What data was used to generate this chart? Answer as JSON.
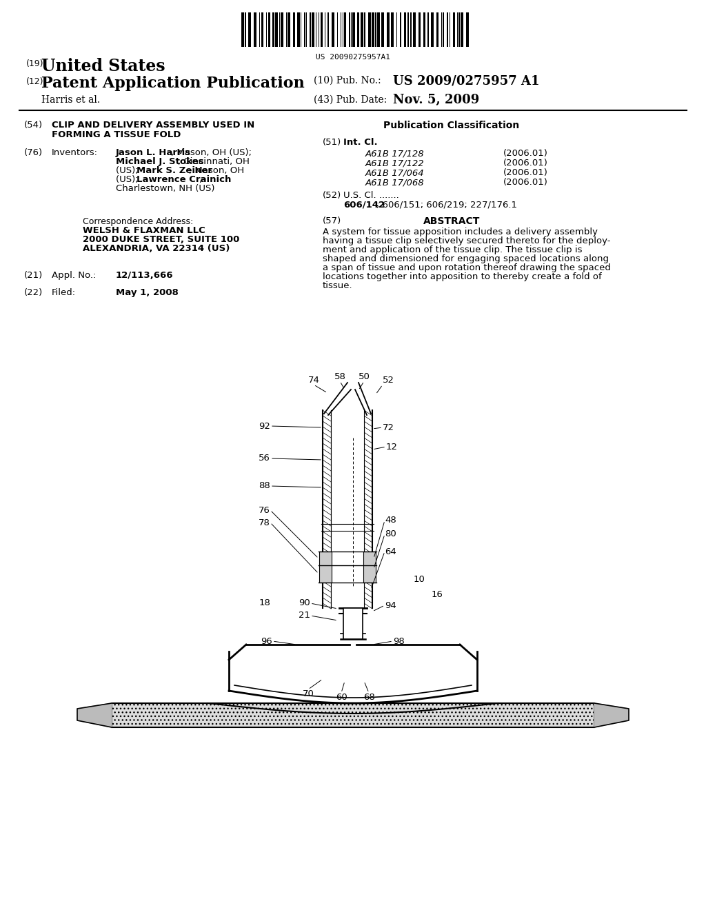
{
  "background_color": "#ffffff",
  "barcode_text": "US 20090275957A1",
  "patent_number_label": "(19)",
  "patent_number_title": "United States",
  "pub_type_label": "(12)",
  "pub_type_title": "Patent Application Publication",
  "pub_no_label": "(10) Pub. No.:",
  "pub_no_value": "US 2009/0275957 A1",
  "pub_date_label": "(43) Pub. Date:",
  "pub_date_value": "Nov. 5, 2009",
  "inventors_label": "Harris et al.",
  "title_label": "(54)",
  "title_text": "CLIP AND DELIVERY ASSEMBLY USED IN\nFORMING A TISSUE FOLD",
  "inventors_section_label": "(76)",
  "inventors_section_title": "Inventors:",
  "inventors_text": "Jason L. Harris, Mason, OH (US);\nMichael J. Stokes, Cincinnati, OH\n(US); Mark S. Zeiner, Mason, OH\n(US); Lawrence Crainich,\nCharlestown, NH (US)",
  "correspondence_header": "Correspondence Address:",
  "correspondence_name": "WELSH & FLAXMAN LLC",
  "correspondence_addr1": "2000 DUKE STREET, SUITE 100",
  "correspondence_addr2": "ALEXANDRIA, VA 22314 (US)",
  "appl_no_label": "(21)",
  "appl_no_title": "Appl. No.:",
  "appl_no_value": "12/113,666",
  "filed_label": "(22)",
  "filed_title": "Filed:",
  "filed_value": "May 1, 2008",
  "pub_class_title": "Publication Classification",
  "int_cl_label": "(51)",
  "int_cl_title": "Int. Cl.",
  "classifications": [
    [
      "A61B 17/128",
      "(2006.01)"
    ],
    [
      "A61B 17/122",
      "(2006.01)"
    ],
    [
      "A61B 17/064",
      "(2006.01)"
    ],
    [
      "A61B 17/068",
      "(2006.01)"
    ]
  ],
  "us_cl_label": "(52)",
  "us_cl_title": "U.S. Cl.",
  "us_cl_value": "606/142; 606/151; 606/219; 227/176.1",
  "abstract_label": "(57)",
  "abstract_title": "ABSTRACT",
  "abstract_text": "A system for tissue apposition includes a delivery assembly having a tissue clip selectively secured thereto for the deployment and application of the tissue clip. The tissue clip is shaped and dimensioned for engaging spaced locations along a span of tissue and upon rotation thereof drawing the spaced locations together into apposition to thereby create a fold of tissue."
}
